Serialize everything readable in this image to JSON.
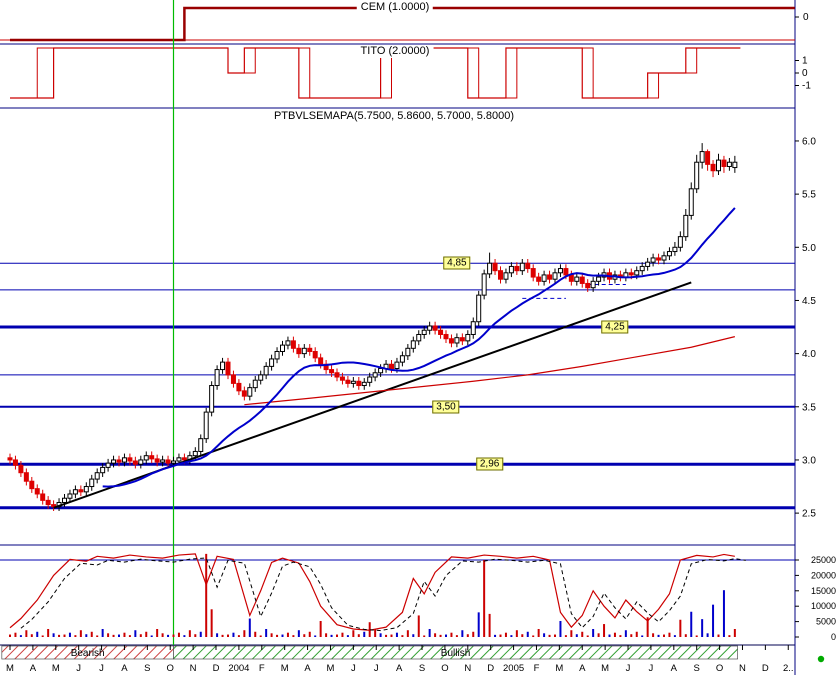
{
  "panels": {
    "cem": {
      "label": "CEM (1.0000)"
    },
    "tito": {
      "label": "TITO (2.0000)"
    },
    "main": {
      "title": "PTBVLSEMAPA(5.7500, 5.8600, 5.7000, 5.8000)",
      "price_labels": [
        {
          "text": "4,85",
          "price": 4.85,
          "week": 82
        },
        {
          "text": "4,25",
          "price": 4.25,
          "week": 111
        },
        {
          "text": "3,50",
          "price": 3.5,
          "week": 80
        },
        {
          "text": "2,96",
          "price": 2.96,
          "week": 88
        }
      ]
    }
  },
  "chart_data": {
    "type": "candlestick+indicators",
    "symbol": "PTBVLSEMAPA",
    "last_quote": {
      "open": 5.75,
      "high": 5.86,
      "low": 5.7,
      "close": 5.8
    },
    "cem_current": 1.0,
    "tito_current": 2.0,
    "price_axis": {
      "labels": [
        "6.0",
        "5.5",
        "5.0",
        "4.5",
        "4.0",
        "3.5",
        "3.0",
        "2.5"
      ],
      "values": [
        6.0,
        5.5,
        5.0,
        4.5,
        4.0,
        3.5,
        3.0,
        2.5
      ]
    },
    "volume_axis": {
      "labels": [
        "25000",
        "20000",
        "15000",
        "10000",
        "5000",
        "0"
      ],
      "values": [
        25000,
        20000,
        15000,
        10000,
        5000,
        0
      ]
    },
    "cem_axis": {
      "labels": [
        "0"
      ],
      "y": [
        17
      ]
    },
    "tito_axis": {
      "labels": [
        "1",
        "0",
        "-1"
      ],
      "values": [
        1,
        0,
        -1
      ]
    },
    "xaxis_labels": [
      "M",
      "A",
      "M",
      "J",
      "J",
      "A",
      "S",
      "O",
      "N",
      "D",
      "2004",
      "F",
      "M",
      "A",
      "M",
      "J",
      "J",
      "A",
      "S",
      "O",
      "N",
      "D",
      "2005",
      "F",
      "M",
      "A",
      "M",
      "J",
      "J",
      "A",
      "S",
      "O",
      "N",
      "D",
      "2.."
    ],
    "regions": [
      {
        "label": "Bearish",
        "from": -1.5,
        "to": 30,
        "color": "red"
      },
      {
        "label": "Bullish",
        "from": 30,
        "to": 133.5,
        "color": "green"
      }
    ],
    "trend_change_week": 30,
    "price_levels": [
      {
        "price": 4.85,
        "weight": 1
      },
      {
        "price": 4.6,
        "weight": 1
      },
      {
        "price": 4.25,
        "weight": 3
      },
      {
        "price": 3.8,
        "weight": 1
      },
      {
        "price": 3.5,
        "weight": 2
      },
      {
        "price": 2.96,
        "weight": 3
      },
      {
        "price": 2.55,
        "weight": 3
      }
    ],
    "dashed_segments": [
      {
        "from": 94,
        "to": 102,
        "price": 4.52
      },
      {
        "from": 106,
        "to": 113,
        "price": 4.65
      }
    ],
    "trendline": {
      "from": [
        8,
        2.55
      ],
      "to": [
        125,
        4.67
      ]
    },
    "red_ma_points": [
      [
        43,
        3.52
      ],
      [
        55,
        3.58
      ],
      [
        70,
        3.66
      ],
      [
        85,
        3.74
      ],
      [
        95,
        3.8
      ],
      [
        105,
        3.88
      ],
      [
        115,
        3.97
      ],
      [
        125,
        4.06
      ],
      [
        133,
        4.16
      ]
    ],
    "blue_ma_period": 18,
    "cem_baseline": -1,
    "cem_steps": [
      [
        0,
        -1
      ],
      [
        32,
        1
      ]
    ],
    "tito_steps": [
      [
        0,
        -2
      ],
      [
        8,
        2
      ],
      [
        40,
        0
      ],
      [
        43,
        2
      ],
      [
        53,
        -2
      ],
      [
        68,
        2
      ],
      [
        84,
        -2
      ],
      [
        91,
        2
      ],
      [
        105,
        -2
      ],
      [
        117,
        0
      ],
      [
        124,
        2
      ]
    ],
    "tito_steps2": [
      [
        0,
        -2
      ],
      [
        5,
        2
      ],
      [
        40,
        0
      ],
      [
        45,
        2
      ],
      [
        55,
        -2
      ],
      [
        70,
        2
      ],
      [
        86,
        -2
      ],
      [
        93,
        2
      ],
      [
        107,
        -2
      ],
      [
        119,
        0
      ],
      [
        126,
        2
      ]
    ],
    "candles": [
      [
        3.02,
        3.06,
        2.96,
        3.0
      ],
      [
        3.0,
        3.04,
        2.91,
        2.95
      ],
      [
        2.95,
        2.99,
        2.84,
        2.88
      ],
      [
        2.88,
        2.92,
        2.76,
        2.8
      ],
      [
        2.8,
        2.84,
        2.69,
        2.73
      ],
      [
        2.73,
        2.77,
        2.64,
        2.68
      ],
      [
        2.68,
        2.72,
        2.58,
        2.62
      ],
      [
        2.62,
        2.66,
        2.54,
        2.58
      ],
      [
        2.58,
        2.62,
        2.52,
        2.56
      ],
      [
        2.56,
        2.64,
        2.52,
        2.6
      ],
      [
        2.6,
        2.68,
        2.56,
        2.64
      ],
      [
        2.64,
        2.72,
        2.6,
        2.68
      ],
      [
        2.68,
        2.76,
        2.64,
        2.72
      ],
      [
        2.72,
        2.76,
        2.66,
        2.7
      ],
      [
        2.7,
        2.79,
        2.66,
        2.75
      ],
      [
        2.75,
        2.86,
        2.71,
        2.82
      ],
      [
        2.82,
        2.92,
        2.78,
        2.88
      ],
      [
        2.88,
        2.97,
        2.84,
        2.93
      ],
      [
        2.93,
        3.01,
        2.89,
        2.97
      ],
      [
        2.97,
        3.04,
        2.93,
        3.0
      ],
      [
        3.0,
        3.04,
        2.94,
        2.98
      ],
      [
        2.98,
        3.06,
        2.94,
        3.02
      ],
      [
        3.02,
        3.06,
        2.95,
        2.99
      ],
      [
        2.99,
        3.03,
        2.92,
        2.96
      ],
      [
        2.96,
        3.04,
        2.92,
        3.0
      ],
      [
        3.0,
        3.08,
        2.96,
        3.04
      ],
      [
        3.04,
        3.08,
        2.97,
        3.01
      ],
      [
        3.01,
        3.05,
        2.94,
        2.98
      ],
      [
        2.98,
        3.04,
        2.94,
        3.0
      ],
      [
        3.0,
        3.04,
        2.93,
        2.97
      ],
      [
        2.97,
        3.03,
        2.93,
        2.99
      ],
      [
        2.99,
        3.06,
        2.95,
        3.02
      ],
      [
        3.02,
        3.06,
        2.96,
        3.0
      ],
      [
        3.0,
        3.08,
        2.96,
        3.04
      ],
      [
        3.04,
        3.12,
        3.0,
        3.08
      ],
      [
        3.08,
        3.24,
        3.04,
        3.2
      ],
      [
        3.2,
        3.49,
        3.16,
        3.45
      ],
      [
        3.45,
        3.74,
        3.41,
        3.7
      ],
      [
        3.7,
        3.89,
        3.66,
        3.85
      ],
      [
        3.85,
        3.96,
        3.81,
        3.92
      ],
      [
        3.92,
        3.96,
        3.76,
        3.8
      ],
      [
        3.8,
        3.84,
        3.68,
        3.72
      ],
      [
        3.72,
        3.76,
        3.61,
        3.65
      ],
      [
        3.65,
        3.69,
        3.56,
        3.6
      ],
      [
        3.6,
        3.72,
        3.56,
        3.68
      ],
      [
        3.68,
        3.79,
        3.64,
        3.75
      ],
      [
        3.75,
        3.84,
        3.71,
        3.8
      ],
      [
        3.8,
        3.92,
        3.76,
        3.88
      ],
      [
        3.88,
        3.99,
        3.84,
        3.95
      ],
      [
        3.95,
        4.06,
        3.91,
        4.02
      ],
      [
        4.02,
        4.12,
        3.98,
        4.08
      ],
      [
        4.08,
        4.16,
        4.04,
        4.12
      ],
      [
        4.12,
        4.16,
        4.01,
        4.05
      ],
      [
        4.05,
        4.09,
        3.96,
        4.0
      ],
      [
        4.0,
        4.09,
        3.96,
        4.05
      ],
      [
        4.05,
        4.09,
        3.98,
        4.02
      ],
      [
        4.02,
        4.06,
        3.92,
        3.96
      ],
      [
        3.96,
        4.0,
        3.86,
        3.9
      ],
      [
        3.9,
        3.94,
        3.81,
        3.85
      ],
      [
        3.85,
        3.89,
        3.78,
        3.82
      ],
      [
        3.82,
        3.86,
        3.74,
        3.78
      ],
      [
        3.78,
        3.82,
        3.71,
        3.75
      ],
      [
        3.75,
        3.79,
        3.68,
        3.72
      ],
      [
        3.72,
        3.78,
        3.68,
        3.74
      ],
      [
        3.74,
        3.78,
        3.66,
        3.7
      ],
      [
        3.7,
        3.77,
        3.66,
        3.73
      ],
      [
        3.73,
        3.82,
        3.69,
        3.78
      ],
      [
        3.78,
        3.86,
        3.74,
        3.82
      ],
      [
        3.82,
        3.9,
        3.78,
        3.86
      ],
      [
        3.86,
        3.94,
        3.82,
        3.9
      ],
      [
        3.9,
        3.94,
        3.82,
        3.86
      ],
      [
        3.86,
        3.96,
        3.82,
        3.92
      ],
      [
        3.92,
        4.02,
        3.88,
        3.98
      ],
      [
        3.98,
        4.09,
        3.94,
        4.05
      ],
      [
        4.05,
        4.16,
        4.01,
        4.12
      ],
      [
        4.12,
        4.22,
        4.08,
        4.18
      ],
      [
        4.18,
        4.26,
        4.14,
        4.22
      ],
      [
        4.22,
        4.3,
        4.18,
        4.26
      ],
      [
        4.26,
        4.3,
        4.18,
        4.22
      ],
      [
        4.22,
        4.26,
        4.14,
        4.18
      ],
      [
        4.18,
        4.22,
        4.1,
        4.14
      ],
      [
        4.14,
        4.18,
        4.06,
        4.1
      ],
      [
        4.1,
        4.19,
        4.06,
        4.15
      ],
      [
        4.15,
        4.19,
        4.08,
        4.12
      ],
      [
        4.12,
        4.22,
        4.08,
        4.18
      ],
      [
        4.18,
        4.34,
        4.14,
        4.3
      ],
      [
        4.3,
        4.59,
        4.26,
        4.55
      ],
      [
        4.55,
        4.79,
        4.51,
        4.75
      ],
      [
        4.75,
        4.95,
        4.71,
        4.85
      ],
      [
        4.85,
        4.89,
        4.74,
        4.78
      ],
      [
        4.78,
        4.82,
        4.66,
        4.7
      ],
      [
        4.7,
        4.8,
        4.66,
        4.76
      ],
      [
        4.76,
        4.86,
        4.72,
        4.82
      ],
      [
        4.82,
        4.86,
        4.74,
        4.78
      ],
      [
        4.78,
        4.89,
        4.74,
        4.85
      ],
      [
        4.85,
        4.89,
        4.76,
        4.8
      ],
      [
        4.8,
        4.84,
        4.68,
        4.72
      ],
      [
        4.72,
        4.76,
        4.64,
        4.68
      ],
      [
        4.68,
        4.78,
        4.64,
        4.74
      ],
      [
        4.74,
        4.78,
        4.66,
        4.7
      ],
      [
        4.7,
        4.8,
        4.66,
        4.76
      ],
      [
        4.76,
        4.84,
        4.72,
        4.8
      ],
      [
        4.8,
        4.84,
        4.7,
        4.74
      ],
      [
        4.74,
        4.78,
        4.64,
        4.68
      ],
      [
        4.68,
        4.76,
        4.64,
        4.72
      ],
      [
        4.72,
        4.76,
        4.62,
        4.66
      ],
      [
        4.66,
        4.7,
        4.58,
        4.62
      ],
      [
        4.62,
        4.72,
        4.58,
        4.68
      ],
      [
        4.68,
        4.76,
        4.64,
        4.72
      ],
      [
        4.72,
        4.8,
        4.68,
        4.76
      ],
      [
        4.76,
        4.8,
        4.66,
        4.7
      ],
      [
        4.7,
        4.78,
        4.66,
        4.74
      ],
      [
        4.74,
        4.78,
        4.68,
        4.72
      ],
      [
        4.72,
        4.8,
        4.68,
        4.76
      ],
      [
        4.76,
        4.8,
        4.7,
        4.74
      ],
      [
        4.74,
        4.82,
        4.7,
        4.78
      ],
      [
        4.78,
        4.86,
        4.74,
        4.82
      ],
      [
        4.82,
        4.9,
        4.78,
        4.86
      ],
      [
        4.86,
        4.94,
        4.82,
        4.9
      ],
      [
        4.9,
        4.94,
        4.84,
        4.88
      ],
      [
        4.88,
        4.96,
        4.84,
        4.92
      ],
      [
        4.92,
        5.0,
        4.88,
        4.96
      ],
      [
        4.96,
        5.05,
        4.92,
        5.0
      ],
      [
        5.0,
        5.15,
        4.96,
        5.1
      ],
      [
        5.1,
        5.36,
        5.06,
        5.3
      ],
      [
        5.3,
        5.61,
        5.26,
        5.55
      ],
      [
        5.55,
        5.87,
        5.51,
        5.8
      ],
      [
        5.8,
        5.98,
        5.74,
        5.9
      ],
      [
        5.9,
        5.92,
        5.72,
        5.78
      ],
      [
        5.78,
        5.82,
        5.66,
        5.72
      ],
      [
        5.72,
        5.88,
        5.68,
        5.82
      ],
      [
        5.82,
        5.86,
        5.7,
        5.76
      ],
      [
        5.76,
        5.84,
        5.72,
        5.8
      ],
      [
        5.75,
        5.86,
        5.7,
        5.8
      ]
    ],
    "volumes": [
      800,
      1400,
      600,
      2200,
      900,
      1700,
      500,
      2600,
      1200,
      700,
      800,
      1400,
      600,
      2200,
      900,
      1700,
      500,
      2600,
      1200,
      700,
      800,
      1400,
      600,
      2200,
      900,
      1700,
      500,
      2600,
      1200,
      700,
      800,
      1400,
      600,
      2200,
      900,
      1700,
      27000,
      9000,
      1200,
      700,
      800,
      1400,
      600,
      2200,
      6000,
      1700,
      500,
      2600,
      1200,
      700,
      800,
      1400,
      600,
      2200,
      900,
      1700,
      500,
      5200,
      1200,
      700,
      800,
      1400,
      600,
      2200,
      900,
      1700,
      4800,
      2600,
      1200,
      700,
      800,
      1400,
      600,
      2200,
      900,
      7000,
      500,
      2600,
      1200,
      700,
      800,
      1400,
      600,
      2200,
      900,
      1700,
      8000,
      25000,
      7500,
      700,
      800,
      1400,
      600,
      2200,
      900,
      1700,
      500,
      2600,
      1200,
      700,
      800,
      5200,
      600,
      2200,
      900,
      1700,
      500,
      2600,
      1200,
      4200,
      800,
      1400,
      600,
      2200,
      900,
      1700,
      500,
      6400,
      1200,
      700,
      800,
      1400,
      600,
      5600,
      900,
      8200,
      500,
      5800,
      1200,
      10500,
      800,
      15200,
      600,
      2600
    ],
    "volume_colors": "rrbrrbrrbrrbrrbrrbrrbrrbrrbrrbrrbrrbrrbrrbrrbrrbrrbrrbrrbrrbrrbrrbrrbrrbrrbrrbrrbrrbrrbrrbrrbrrbrrbrrbrrbrrbrrbrrbrrbrrbrrbrrbrbbbrbrr",
    "oscillator_points": [
      [
        0,
        3000
      ],
      [
        2,
        6000
      ],
      [
        5,
        12000
      ],
      [
        8,
        20000
      ],
      [
        11,
        25200
      ],
      [
        14,
        24600
      ],
      [
        16,
        26200
      ],
      [
        19,
        25600
      ],
      [
        22,
        26600
      ],
      [
        25,
        26000
      ],
      [
        28,
        25600
      ],
      [
        31,
        26600
      ],
      [
        34,
        27000
      ],
      [
        36,
        17000
      ],
      [
        38,
        26200
      ],
      [
        41,
        25200
      ],
      [
        44,
        7000
      ],
      [
        46,
        15000
      ],
      [
        48,
        24200
      ],
      [
        50,
        25600
      ],
      [
        53,
        24000
      ],
      [
        55,
        18000
      ],
      [
        57,
        10000
      ],
      [
        60,
        4000
      ],
      [
        63,
        2600
      ],
      [
        66,
        2200
      ],
      [
        69,
        3200
      ],
      [
        72,
        8000
      ],
      [
        74,
        19000
      ],
      [
        76,
        14000
      ],
      [
        78,
        21000
      ],
      [
        81,
        26000
      ],
      [
        84,
        25600
      ],
      [
        87,
        26600
      ],
      [
        90,
        26200
      ],
      [
        93,
        25600
      ],
      [
        96,
        26200
      ],
      [
        99,
        25000
      ],
      [
        101,
        8000
      ],
      [
        103,
        3200
      ],
      [
        105,
        7000
      ],
      [
        107,
        15000
      ],
      [
        109,
        10000
      ],
      [
        111,
        6200
      ],
      [
        113,
        12000
      ],
      [
        115,
        8200
      ],
      [
        117,
        5200
      ],
      [
        119,
        9000
      ],
      [
        121,
        14000
      ],
      [
        123,
        25000
      ],
      [
        126,
        26500
      ],
      [
        129,
        26000
      ],
      [
        131,
        26800
      ],
      [
        133,
        26200
      ]
    ],
    "volume_ref_level": 25000,
    "colors": {
      "up_candle": "#ffffff",
      "up_outline": "#000000",
      "down_candle": "#dd0000",
      "ma_fast": "#0000cc",
      "ma_slow": "#cc0000",
      "trendline": "#000000",
      "level_line": "#0000b0",
      "signal_line": "#cc0000",
      "signal_line_strong": "#990000",
      "vol_up": "#0000cc",
      "vol_down": "#cc0000",
      "divider": "#000080",
      "bearish_hatch": "#cc4040",
      "bullish_hatch": "#33a033",
      "trend_change_line": "#00bb00",
      "flag_bg": "#ffff99",
      "status_dot": "#00aa00"
    }
  }
}
